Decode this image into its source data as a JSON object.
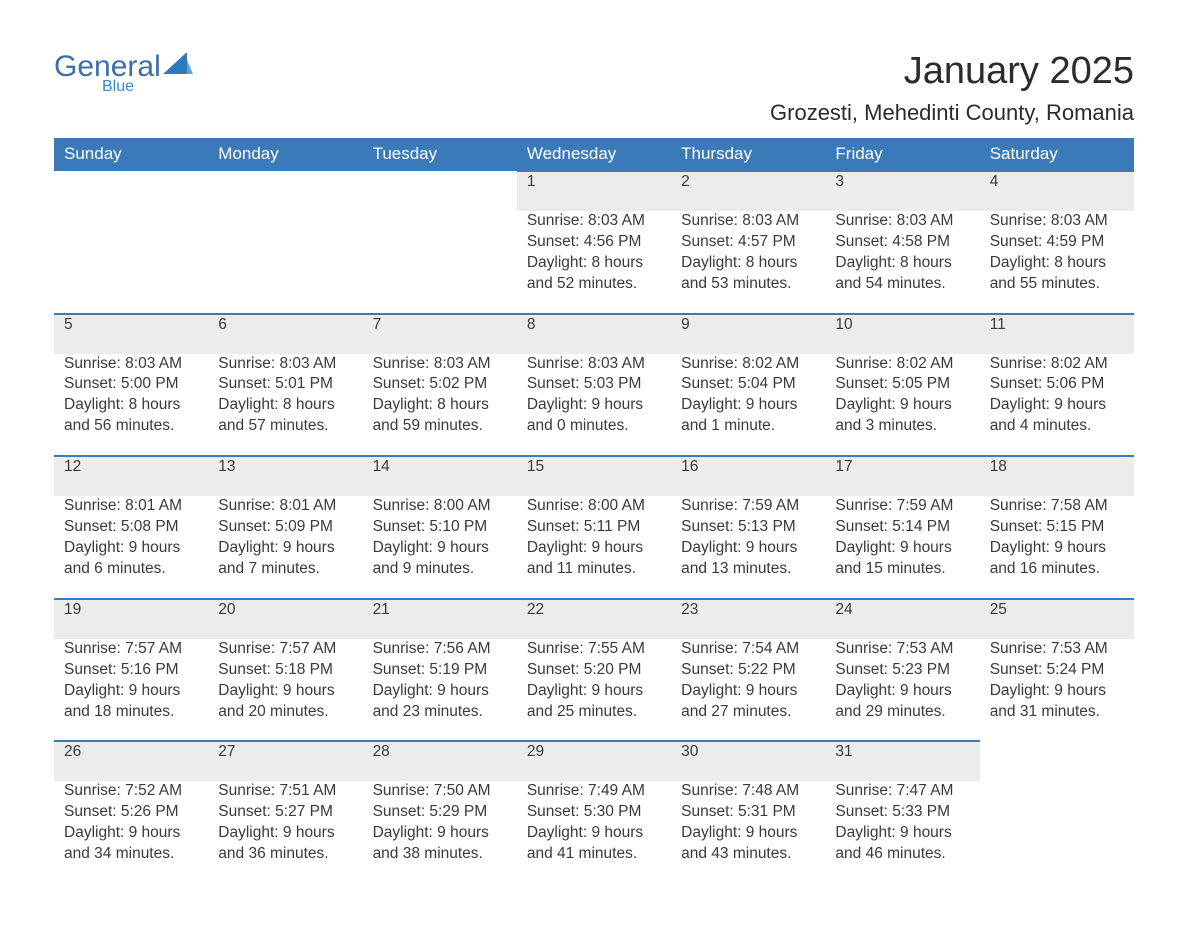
{
  "brand": {
    "general": "General",
    "blue": "Blue"
  },
  "title": "January 2025",
  "subtitle": "Grozesti, Mehedinti County, Romania",
  "colors": {
    "header_bg": "#3b7ab8",
    "header_text": "#ffffff",
    "daynum_bg": "#ececec",
    "rule": "#3b7ab8",
    "text": "#3a3a3a",
    "logo_general": "#3b6fa8",
    "logo_blue": "#3b89c9"
  },
  "weekdays": [
    "Sunday",
    "Monday",
    "Tuesday",
    "Wednesday",
    "Thursday",
    "Friday",
    "Saturday"
  ],
  "weeks": [
    {
      "nums": [
        "",
        "",
        "",
        "1",
        "2",
        "3",
        "4"
      ],
      "cells": [
        null,
        null,
        null,
        {
          "sunrise": "Sunrise: 8:03 AM",
          "sunset": "Sunset: 4:56 PM",
          "dl1": "Daylight: 8 hours",
          "dl2": "and 52 minutes."
        },
        {
          "sunrise": "Sunrise: 8:03 AM",
          "sunset": "Sunset: 4:57 PM",
          "dl1": "Daylight: 8 hours",
          "dl2": "and 53 minutes."
        },
        {
          "sunrise": "Sunrise: 8:03 AM",
          "sunset": "Sunset: 4:58 PM",
          "dl1": "Daylight: 8 hours",
          "dl2": "and 54 minutes."
        },
        {
          "sunrise": "Sunrise: 8:03 AM",
          "sunset": "Sunset: 4:59 PM",
          "dl1": "Daylight: 8 hours",
          "dl2": "and 55 minutes."
        }
      ]
    },
    {
      "nums": [
        "5",
        "6",
        "7",
        "8",
        "9",
        "10",
        "11"
      ],
      "cells": [
        {
          "sunrise": "Sunrise: 8:03 AM",
          "sunset": "Sunset: 5:00 PM",
          "dl1": "Daylight: 8 hours",
          "dl2": "and 56 minutes."
        },
        {
          "sunrise": "Sunrise: 8:03 AM",
          "sunset": "Sunset: 5:01 PM",
          "dl1": "Daylight: 8 hours",
          "dl2": "and 57 minutes."
        },
        {
          "sunrise": "Sunrise: 8:03 AM",
          "sunset": "Sunset: 5:02 PM",
          "dl1": "Daylight: 8 hours",
          "dl2": "and 59 minutes."
        },
        {
          "sunrise": "Sunrise: 8:03 AM",
          "sunset": "Sunset: 5:03 PM",
          "dl1": "Daylight: 9 hours",
          "dl2": "and 0 minutes."
        },
        {
          "sunrise": "Sunrise: 8:02 AM",
          "sunset": "Sunset: 5:04 PM",
          "dl1": "Daylight: 9 hours",
          "dl2": "and 1 minute."
        },
        {
          "sunrise": "Sunrise: 8:02 AM",
          "sunset": "Sunset: 5:05 PM",
          "dl1": "Daylight: 9 hours",
          "dl2": "and 3 minutes."
        },
        {
          "sunrise": "Sunrise: 8:02 AM",
          "sunset": "Sunset: 5:06 PM",
          "dl1": "Daylight: 9 hours",
          "dl2": "and 4 minutes."
        }
      ]
    },
    {
      "nums": [
        "12",
        "13",
        "14",
        "15",
        "16",
        "17",
        "18"
      ],
      "cells": [
        {
          "sunrise": "Sunrise: 8:01 AM",
          "sunset": "Sunset: 5:08 PM",
          "dl1": "Daylight: 9 hours",
          "dl2": "and 6 minutes."
        },
        {
          "sunrise": "Sunrise: 8:01 AM",
          "sunset": "Sunset: 5:09 PM",
          "dl1": "Daylight: 9 hours",
          "dl2": "and 7 minutes."
        },
        {
          "sunrise": "Sunrise: 8:00 AM",
          "sunset": "Sunset: 5:10 PM",
          "dl1": "Daylight: 9 hours",
          "dl2": "and 9 minutes."
        },
        {
          "sunrise": "Sunrise: 8:00 AM",
          "sunset": "Sunset: 5:11 PM",
          "dl1": "Daylight: 9 hours",
          "dl2": "and 11 minutes."
        },
        {
          "sunrise": "Sunrise: 7:59 AM",
          "sunset": "Sunset: 5:13 PM",
          "dl1": "Daylight: 9 hours",
          "dl2": "and 13 minutes."
        },
        {
          "sunrise": "Sunrise: 7:59 AM",
          "sunset": "Sunset: 5:14 PM",
          "dl1": "Daylight: 9 hours",
          "dl2": "and 15 minutes."
        },
        {
          "sunrise": "Sunrise: 7:58 AM",
          "sunset": "Sunset: 5:15 PM",
          "dl1": "Daylight: 9 hours",
          "dl2": "and 16 minutes."
        }
      ]
    },
    {
      "nums": [
        "19",
        "20",
        "21",
        "22",
        "23",
        "24",
        "25"
      ],
      "cells": [
        {
          "sunrise": "Sunrise: 7:57 AM",
          "sunset": "Sunset: 5:16 PM",
          "dl1": "Daylight: 9 hours",
          "dl2": "and 18 minutes."
        },
        {
          "sunrise": "Sunrise: 7:57 AM",
          "sunset": "Sunset: 5:18 PM",
          "dl1": "Daylight: 9 hours",
          "dl2": "and 20 minutes."
        },
        {
          "sunrise": "Sunrise: 7:56 AM",
          "sunset": "Sunset: 5:19 PM",
          "dl1": "Daylight: 9 hours",
          "dl2": "and 23 minutes."
        },
        {
          "sunrise": "Sunrise: 7:55 AM",
          "sunset": "Sunset: 5:20 PM",
          "dl1": "Daylight: 9 hours",
          "dl2": "and 25 minutes."
        },
        {
          "sunrise": "Sunrise: 7:54 AM",
          "sunset": "Sunset: 5:22 PM",
          "dl1": "Daylight: 9 hours",
          "dl2": "and 27 minutes."
        },
        {
          "sunrise": "Sunrise: 7:53 AM",
          "sunset": "Sunset: 5:23 PM",
          "dl1": "Daylight: 9 hours",
          "dl2": "and 29 minutes."
        },
        {
          "sunrise": "Sunrise: 7:53 AM",
          "sunset": "Sunset: 5:24 PM",
          "dl1": "Daylight: 9 hours",
          "dl2": "and 31 minutes."
        }
      ]
    },
    {
      "nums": [
        "26",
        "27",
        "28",
        "29",
        "30",
        "31",
        ""
      ],
      "cells": [
        {
          "sunrise": "Sunrise: 7:52 AM",
          "sunset": "Sunset: 5:26 PM",
          "dl1": "Daylight: 9 hours",
          "dl2": "and 34 minutes."
        },
        {
          "sunrise": "Sunrise: 7:51 AM",
          "sunset": "Sunset: 5:27 PM",
          "dl1": "Daylight: 9 hours",
          "dl2": "and 36 minutes."
        },
        {
          "sunrise": "Sunrise: 7:50 AM",
          "sunset": "Sunset: 5:29 PM",
          "dl1": "Daylight: 9 hours",
          "dl2": "and 38 minutes."
        },
        {
          "sunrise": "Sunrise: 7:49 AM",
          "sunset": "Sunset: 5:30 PM",
          "dl1": "Daylight: 9 hours",
          "dl2": "and 41 minutes."
        },
        {
          "sunrise": "Sunrise: 7:48 AM",
          "sunset": "Sunset: 5:31 PM",
          "dl1": "Daylight: 9 hours",
          "dl2": "and 43 minutes."
        },
        {
          "sunrise": "Sunrise: 7:47 AM",
          "sunset": "Sunset: 5:33 PM",
          "dl1": "Daylight: 9 hours",
          "dl2": "and 46 minutes."
        },
        null
      ]
    }
  ]
}
